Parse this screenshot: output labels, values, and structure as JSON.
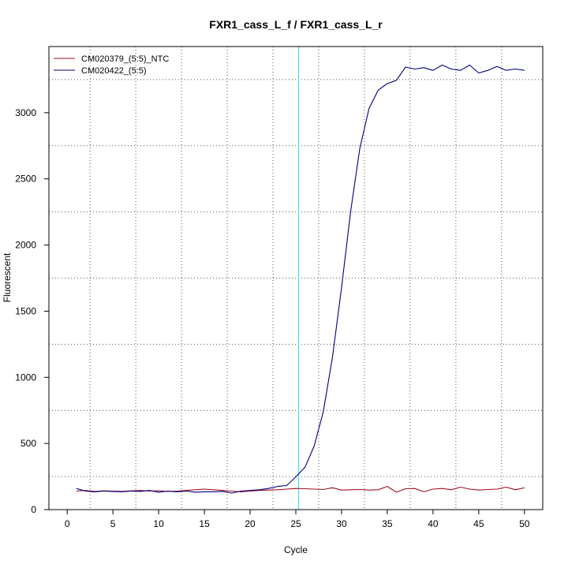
{
  "chart_data": {
    "type": "line",
    "title": "FXR1_cass_L_f / FXR1_cass_L_r",
    "xlabel": "Cycle",
    "ylabel": "Fluorescent",
    "xlim": [
      -2,
      52
    ],
    "ylim": [
      0,
      3500
    ],
    "xticks": [
      0,
      5,
      10,
      15,
      20,
      25,
      30,
      35,
      40,
      45,
      50
    ],
    "yticks": [
      0,
      500,
      1000,
      1500,
      2000,
      2500,
      3000
    ],
    "grid": true,
    "legend_position": "top-left",
    "threshold_x": 25.3,
    "threshold_color": "#40e0f0",
    "baseline_color": "#c00000",
    "x": [
      1,
      2,
      3,
      4,
      5,
      6,
      7,
      8,
      9,
      10,
      11,
      12,
      13,
      14,
      15,
      16,
      17,
      18,
      19,
      20,
      21,
      22,
      23,
      24,
      25,
      26,
      27,
      28,
      29,
      30,
      31,
      32,
      33,
      34,
      35,
      36,
      37,
      38,
      39,
      40,
      41,
      42,
      43,
      44,
      45,
      46,
      47,
      48,
      49,
      50
    ],
    "series": [
      {
        "name": "CM020379_(5:5)_NTC",
        "color": "#a01020",
        "values": [
          140,
          145,
          138,
          142,
          140,
          138,
          142,
          145,
          140,
          143,
          138,
          140,
          145,
          150,
          155,
          150,
          145,
          140,
          135,
          140,
          145,
          148,
          150,
          155,
          160,
          158,
          155,
          152,
          165,
          148,
          150,
          152,
          148,
          150,
          175,
          132,
          158,
          160,
          135,
          155,
          160,
          150,
          170,
          155,
          148,
          152,
          155,
          170,
          150,
          165
        ]
      },
      {
        "name": "CM020422_(5:5)",
        "color": "#000080",
        "values": [
          160,
          140,
          135,
          140,
          138,
          135,
          140,
          138,
          145,
          132,
          140,
          135,
          140,
          132,
          135,
          135,
          138,
          125,
          140,
          145,
          150,
          160,
          175,
          182,
          248,
          320,
          480,
          740,
          1150,
          1680,
          2260,
          2730,
          3030,
          3170,
          3220,
          3245,
          3345,
          3330,
          3340,
          3320,
          3360,
          3330,
          3320,
          3360,
          3300,
          3320,
          3350,
          3320,
          3330,
          3320
        ]
      }
    ]
  }
}
